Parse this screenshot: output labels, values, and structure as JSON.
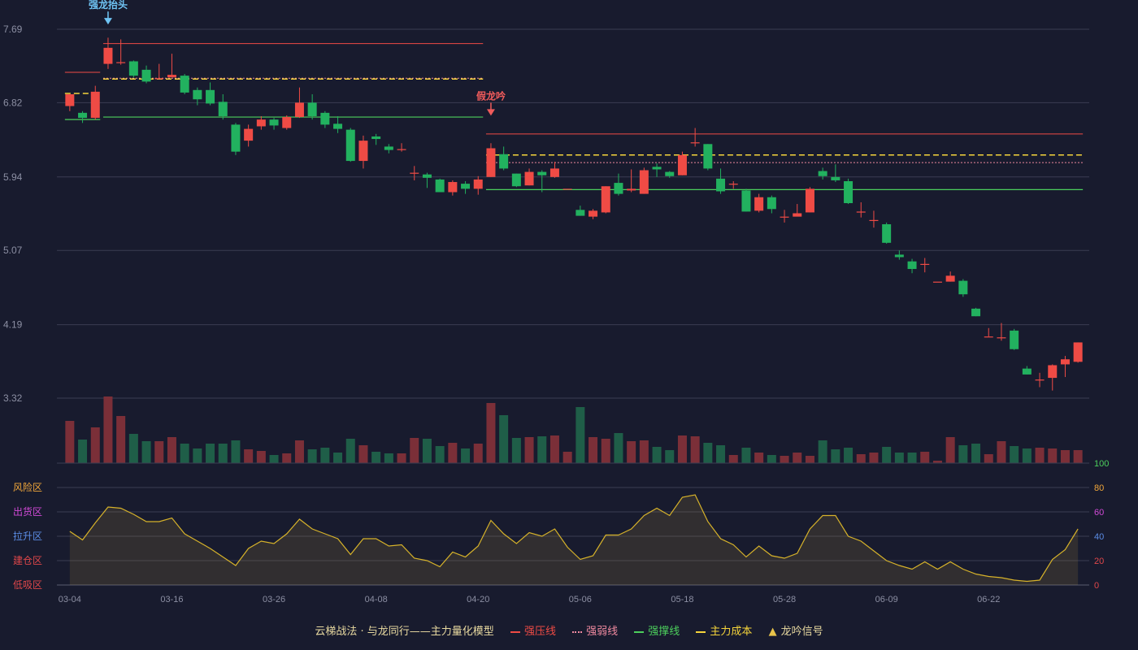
{
  "chart_data": {
    "type": "candlestick",
    "price_axis": {
      "ticks": [
        "7.69",
        "6.82",
        "5.94",
        "5.07",
        "4.19",
        "3.32"
      ],
      "ylim": [
        3.32,
        7.69
      ]
    },
    "x_ticks": [
      "03-04",
      "03-16",
      "03-26",
      "04-08",
      "04-20",
      "05-06",
      "05-18",
      "05-28",
      "06-09",
      "06-22"
    ],
    "colors": {
      "up": "#ef4b45",
      "down": "#22b15f",
      "vol_up": "#7b2f38",
      "vol_down": "#1f5e48",
      "osc": "#d6b22a"
    },
    "candles": [
      [
        6.78,
        6.92,
        6.92,
        6.72
      ],
      [
        6.7,
        6.64,
        6.72,
        6.58
      ],
      [
        6.64,
        6.95,
        7.02,
        6.62
      ],
      [
        7.28,
        7.47,
        7.59,
        7.22
      ],
      [
        7.3,
        7.3,
        7.57,
        7.27
      ],
      [
        7.31,
        7.14,
        7.32,
        7.12
      ],
      [
        7.21,
        7.07,
        7.26,
        7.05
      ],
      [
        7.1,
        7.11,
        7.28,
        7.1
      ],
      [
        7.12,
        7.15,
        7.4,
        7.14
      ],
      [
        7.14,
        6.94,
        7.16,
        6.92
      ],
      [
        6.97,
        6.86,
        7.0,
        6.79
      ],
      [
        6.97,
        6.81,
        7.06,
        6.79
      ],
      [
        6.83,
        6.66,
        6.92,
        6.62
      ],
      [
        6.56,
        6.24,
        6.58,
        6.2
      ],
      [
        6.37,
        6.51,
        6.56,
        6.3
      ],
      [
        6.54,
        6.62,
        6.66,
        6.5
      ],
      [
        6.62,
        6.55,
        6.64,
        6.5
      ],
      [
        6.52,
        6.65,
        6.67,
        6.5
      ],
      [
        6.65,
        6.82,
        7.0,
        6.64
      ],
      [
        6.82,
        6.66,
        6.92,
        6.62
      ],
      [
        6.7,
        6.56,
        6.72,
        6.52
      ],
      [
        6.57,
        6.51,
        6.66,
        6.46
      ],
      [
        6.5,
        6.13,
        6.52,
        6.12
      ],
      [
        6.13,
        6.37,
        6.43,
        6.04
      ],
      [
        6.42,
        6.39,
        6.45,
        6.32
      ],
      [
        6.3,
        6.26,
        6.33,
        6.22
      ],
      [
        6.26,
        6.27,
        6.34,
        6.24
      ],
      [
        5.99,
        5.99,
        6.07,
        5.9
      ],
      [
        5.97,
        5.93,
        5.99,
        5.81
      ],
      [
        5.91,
        5.76,
        5.92,
        5.76
      ],
      [
        5.76,
        5.88,
        5.9,
        5.72
      ],
      [
        5.86,
        5.8,
        5.89,
        5.74
      ],
      [
        5.8,
        5.91,
        5.95,
        5.73
      ],
      [
        5.94,
        6.28,
        6.34,
        5.94
      ],
      [
        6.21,
        6.04,
        6.3,
        6.02
      ],
      [
        5.98,
        5.83,
        5.98,
        5.82
      ],
      [
        5.84,
        6.0,
        6.04,
        5.84
      ],
      [
        6.0,
        5.96,
        6.02,
        5.76
      ],
      [
        5.94,
        6.04,
        6.12,
        5.93
      ],
      [
        5.8,
        5.8,
        5.8,
        5.8
      ],
      [
        5.55,
        5.48,
        5.6,
        5.48
      ],
      [
        5.47,
        5.54,
        5.56,
        5.44
      ],
      [
        5.52,
        5.83,
        5.83,
        5.51
      ],
      [
        5.87,
        5.74,
        5.98,
        5.72
      ],
      [
        5.78,
        5.8,
        6.03,
        5.76
      ],
      [
        5.74,
        6.02,
        6.05,
        5.74
      ],
      [
        6.06,
        6.03,
        6.1,
        5.94
      ],
      [
        6.0,
        5.95,
        6.01,
        5.93
      ],
      [
        5.96,
        6.2,
        6.24,
        5.96
      ],
      [
        6.35,
        6.35,
        6.52,
        6.3
      ],
      [
        6.33,
        6.04,
        6.33,
        6.02
      ],
      [
        5.92,
        5.77,
        6.04,
        5.74
      ],
      [
        5.86,
        5.86,
        5.89,
        5.8
      ],
      [
        5.78,
        5.53,
        5.8,
        5.53
      ],
      [
        5.54,
        5.7,
        5.74,
        5.52
      ],
      [
        5.7,
        5.56,
        5.72,
        5.51
      ],
      [
        5.47,
        5.47,
        5.55,
        5.4
      ],
      [
        5.47,
        5.51,
        5.62,
        5.48
      ],
      [
        5.52,
        5.8,
        5.82,
        5.52
      ],
      [
        6.01,
        5.95,
        6.05,
        5.91
      ],
      [
        5.94,
        5.9,
        6.09,
        5.88
      ],
      [
        5.89,
        5.63,
        5.92,
        5.62
      ],
      [
        5.53,
        5.53,
        5.64,
        5.46
      ],
      [
        5.43,
        5.43,
        5.54,
        5.34
      ],
      [
        5.38,
        5.16,
        5.4,
        5.15
      ],
      [
        5.02,
        4.99,
        5.07,
        4.96
      ],
      [
        4.94,
        4.85,
        4.97,
        4.8
      ],
      [
        4.91,
        4.91,
        4.98,
        4.81
      ],
      [
        4.7,
        4.7,
        4.7,
        4.7
      ],
      [
        4.7,
        4.77,
        4.82,
        4.7
      ],
      [
        4.71,
        4.55,
        4.73,
        4.52
      ],
      [
        4.38,
        4.29,
        4.39,
        4.29
      ],
      [
        4.05,
        4.05,
        4.15,
        4.05
      ],
      [
        4.04,
        4.04,
        4.21,
        4.0
      ],
      [
        4.12,
        3.9,
        4.14,
        3.89
      ],
      [
        3.67,
        3.6,
        3.7,
        3.6
      ],
      [
        3.54,
        3.54,
        3.62,
        3.45
      ],
      [
        3.56,
        3.71,
        3.72,
        3.41
      ],
      [
        3.72,
        3.78,
        3.82,
        3.57
      ],
      [
        3.75,
        3.98,
        3.98,
        3.74
      ]
    ],
    "volume": [
      52,
      29,
      44,
      82,
      58,
      36,
      27,
      27,
      32,
      24,
      18,
      24,
      24,
      28,
      17,
      15,
      10,
      12,
      28,
      17,
      19,
      13,
      30,
      22,
      14,
      12,
      12,
      31,
      30,
      21,
      25,
      18,
      24,
      74,
      59,
      31,
      32,
      33,
      34,
      14,
      69,
      32,
      30,
      37,
      27,
      28,
      20,
      16,
      34,
      33,
      25,
      22,
      10,
      19,
      13,
      10,
      9,
      13,
      9,
      28,
      17,
      19,
      11,
      13,
      20,
      13,
      13,
      14,
      3,
      32,
      22,
      24,
      11,
      27,
      21,
      18,
      19,
      18,
      16,
      16
    ],
    "oscillator": [
      44,
      37,
      51,
      64,
      63,
      58,
      52,
      52,
      55,
      42,
      36,
      30,
      23,
      16,
      30,
      36,
      34,
      42,
      54,
      46,
      42,
      38,
      25,
      38,
      38,
      32,
      33,
      22,
      20,
      15,
      27,
      23,
      32,
      53,
      42,
      34,
      43,
      40,
      46,
      31,
      21,
      24,
      41,
      41,
      46,
      57,
      63,
      57,
      72,
      74,
      52,
      38,
      33,
      23,
      32,
      24,
      22,
      26,
      46,
      57,
      57,
      40,
      36,
      28,
      20,
      16,
      13,
      19,
      13,
      19,
      13,
      9,
      7,
      6,
      4,
      3,
      4,
      21,
      29,
      46
    ],
    "oscillator_axis": {
      "ticks": [
        "100",
        "80",
        "60",
        "40",
        "20",
        "0"
      ],
      "ylim": [
        0,
        100
      ],
      "tick_colors": [
        "#4ccf5c",
        "#f0a63a",
        "#d04ad6",
        "#5b8de6",
        "#e0474a",
        "#e0474a"
      ]
    },
    "zones": [
      {
        "label": "风险区",
        "color": "#f0a63a"
      },
      {
        "label": "出货区",
        "color": "#d04ad6"
      },
      {
        "label": "拉升区",
        "color": "#5b8de6"
      },
      {
        "label": "建仓区",
        "color": "#e0474a"
      },
      {
        "label": "低吸区",
        "color": "#e0474a"
      }
    ],
    "segments": [
      {
        "kind": "resistance",
        "from": 0,
        "to": 2,
        "y": 7.18
      },
      {
        "kind": "support",
        "from": 0,
        "to": 2,
        "y": 6.62
      },
      {
        "kind": "cost",
        "from": 0,
        "to": 2,
        "y": 6.93
      },
      {
        "kind": "resistance",
        "from": 3,
        "to": 32,
        "y": 7.52
      },
      {
        "kind": "weak",
        "from": 3,
        "to": 32,
        "y": 7.11
      },
      {
        "kind": "cost",
        "from": 3,
        "to": 32,
        "y": 7.1
      },
      {
        "kind": "support",
        "from": 3,
        "to": 32,
        "y": 6.65
      },
      {
        "kind": "resistance",
        "from": 33,
        "to": 79,
        "y": 6.45
      },
      {
        "kind": "cost",
        "from": 33,
        "to": 79,
        "y": 6.2
      },
      {
        "kind": "weak",
        "from": 33,
        "to": 79,
        "y": 6.11
      },
      {
        "kind": "support",
        "from": 33,
        "to": 79,
        "y": 5.79
      }
    ],
    "signals": [
      {
        "index": 3,
        "label": "强龙抬头",
        "color": "#6fc4f4",
        "y": 7.9
      },
      {
        "index": 33,
        "label": "假龙吟",
        "color": "#ef5b5b",
        "y": 6.82
      }
    ]
  },
  "legend": {
    "title": "云梯战法 · 与龙同行——主力量化模型",
    "items": [
      {
        "label": "强压线",
        "color": "#ef4b45",
        "style": "solid"
      },
      {
        "label": "强弱线",
        "color": "#f08aa0",
        "style": "dotted"
      },
      {
        "label": "强撑线",
        "color": "#4ccf5c",
        "style": "solid"
      },
      {
        "label": "主力成本",
        "color": "#f5d43b",
        "style": "dashed"
      }
    ],
    "signal_label": "龙吟信号",
    "signal_icon": "triangle-up-icon"
  }
}
